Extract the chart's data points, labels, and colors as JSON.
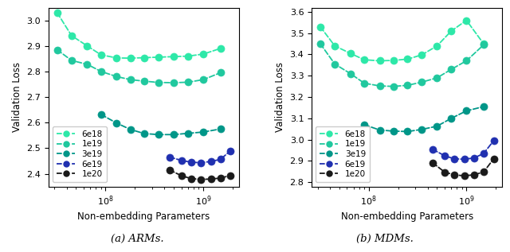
{
  "arm": {
    "ylabel": "Validation Loss",
    "xlabel": "Non-embedding Parameters",
    "ylim": [
      2.35,
      3.05
    ],
    "yticks": [
      2.4,
      2.5,
      2.6,
      2.7,
      2.8,
      2.9,
      3.0
    ],
    "series": [
      {
        "label": "6e18",
        "color": "#2de8a8",
        "x": [
          32000000.0,
          45000000.0,
          65000000.0,
          90000000.0,
          130000000.0,
          180000000.0,
          250000000.0,
          350000000.0,
          500000000.0,
          700000000.0,
          1000000000.0,
          1500000000.0
        ],
        "y": [
          3.03,
          2.94,
          2.9,
          2.865,
          2.853,
          2.852,
          2.854,
          2.856,
          2.858,
          2.86,
          2.868,
          2.89
        ]
      },
      {
        "label": "1e19",
        "color": "#20c89e",
        "x": [
          32000000.0,
          45000000.0,
          65000000.0,
          90000000.0,
          130000000.0,
          180000000.0,
          250000000.0,
          350000000.0,
          500000000.0,
          700000000.0,
          1000000000.0,
          1500000000.0
        ],
        "y": [
          2.885,
          2.843,
          2.828,
          2.8,
          2.78,
          2.768,
          2.762,
          2.757,
          2.756,
          2.758,
          2.768,
          2.795
        ]
      },
      {
        "label": "3e19",
        "color": "#009688",
        "x": [
          90000000.0,
          130000000.0,
          180000000.0,
          250000000.0,
          350000000.0,
          500000000.0,
          700000000.0,
          1000000000.0,
          1500000000.0
        ],
        "y": [
          2.632,
          2.598,
          2.573,
          2.557,
          2.553,
          2.553,
          2.558,
          2.563,
          2.575
        ]
      },
      {
        "label": "6e19",
        "color": "#2030b0",
        "x": [
          450000000.0,
          600000000.0,
          750000000.0,
          950000000.0,
          1200000000.0,
          1500000000.0,
          1900000000.0
        ],
        "y": [
          2.465,
          2.452,
          2.445,
          2.443,
          2.448,
          2.456,
          2.49
        ]
      },
      {
        "label": "1e20",
        "color": "#1a1a1a",
        "x": [
          450000000.0,
          600000000.0,
          750000000.0,
          950000000.0,
          1200000000.0,
          1500000000.0,
          1900000000.0
        ],
        "y": [
          2.415,
          2.392,
          2.381,
          2.378,
          2.379,
          2.383,
          2.393
        ]
      }
    ]
  },
  "mdm": {
    "ylabel": "Validation Loss",
    "xlabel": "Non-embedding Parameters",
    "ylim": [
      2.78,
      3.62
    ],
    "yticks": [
      2.8,
      2.9,
      3.0,
      3.1,
      3.2,
      3.3,
      3.4,
      3.5,
      3.6
    ],
    "series": [
      {
        "label": "6e18",
        "color": "#2de8a8",
        "x": [
          32000000.0,
          45000000.0,
          65000000.0,
          90000000.0,
          130000000.0,
          180000000.0,
          250000000.0,
          350000000.0,
          500000000.0,
          700000000.0,
          1000000000.0,
          1500000000.0
        ],
        "y": [
          3.53,
          3.44,
          3.405,
          3.375,
          3.37,
          3.372,
          3.378,
          3.398,
          3.44,
          3.51,
          3.56,
          3.45
        ]
      },
      {
        "label": "1e19",
        "color": "#20c89e",
        "x": [
          32000000.0,
          45000000.0,
          65000000.0,
          90000000.0,
          130000000.0,
          180000000.0,
          250000000.0,
          350000000.0,
          500000000.0,
          700000000.0,
          1000000000.0,
          1500000000.0
        ],
        "y": [
          3.45,
          3.355,
          3.31,
          3.265,
          3.252,
          3.25,
          3.255,
          3.27,
          3.29,
          3.33,
          3.37,
          3.445
        ]
      },
      {
        "label": "3e19",
        "color": "#009688",
        "x": [
          90000000.0,
          130000000.0,
          180000000.0,
          250000000.0,
          350000000.0,
          500000000.0,
          700000000.0,
          1000000000.0,
          1500000000.0
        ],
        "y": [
          3.07,
          3.045,
          3.04,
          3.038,
          3.048,
          3.063,
          3.1,
          3.135,
          3.155
        ]
      },
      {
        "label": "6e19",
        "color": "#2030b0",
        "x": [
          450000000.0,
          600000000.0,
          750000000.0,
          950000000.0,
          1200000000.0,
          1500000000.0,
          1900000000.0
        ],
        "y": [
          2.955,
          2.924,
          2.91,
          2.908,
          2.914,
          2.935,
          2.995
        ]
      },
      {
        "label": "1e20",
        "color": "#1a1a1a",
        "x": [
          450000000.0,
          600000000.0,
          750000000.0,
          950000000.0,
          1200000000.0,
          1500000000.0,
          1900000000.0
        ],
        "y": [
          2.892,
          2.847,
          2.835,
          2.83,
          2.835,
          2.848,
          2.91
        ]
      }
    ]
  },
  "caption_arm": "(a) ARMs.",
  "caption_mdm": "(b) MDMs."
}
